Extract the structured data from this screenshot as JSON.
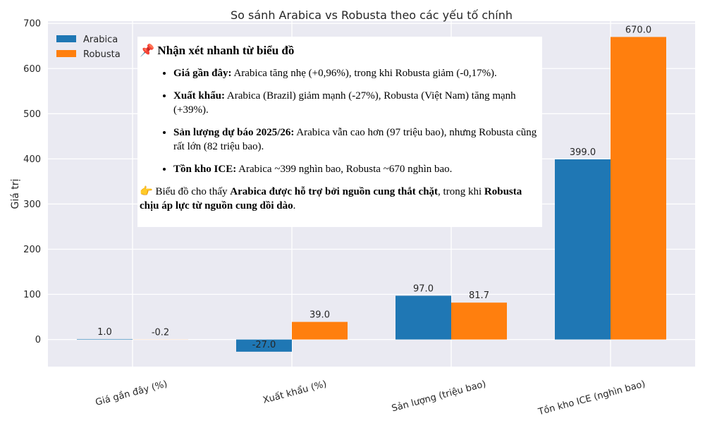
{
  "chart_data": {
    "type": "bar",
    "title": "So sánh Arabica vs Robusta theo các yếu tố chính",
    "xlabel": "",
    "ylabel": "Giá trị",
    "categories": [
      "Giá gần đây (%)",
      "Xuất khẩu (%)",
      "Sản lượng (triệu bao)",
      "Tồn kho ICE (nghìn bao)"
    ],
    "series": [
      {
        "name": "Arabica",
        "values": [
          1.0,
          -27.0,
          97.0,
          399.0
        ],
        "labels": [
          "1.0",
          "-27.0",
          "97.0",
          "399.0"
        ],
        "color": "#1f77b4"
      },
      {
        "name": "Robusta",
        "values": [
          -0.2,
          39.0,
          81.7,
          670.0
        ],
        "labels": [
          "-0.2",
          "39.0",
          "81.7",
          "670.0"
        ],
        "color": "#ff7f0e"
      }
    ],
    "ylim": [
      -60,
      705
    ],
    "yticks": [
      0,
      100,
      200,
      300,
      400,
      500,
      600,
      700
    ],
    "grid": true,
    "legend": "top-left",
    "background": "#eaeaf2"
  },
  "note": {
    "icon": "📌",
    "title": "Nhận xét nhanh từ biểu đồ",
    "items": [
      {
        "key": "Giá gần đây:",
        "text": " Arabica tăng nhẹ (+0,96%), trong khi Robusta giảm (-0,17%)."
      },
      {
        "key": "Xuất khẩu:",
        "text": " Arabica (Brazil) giảm mạnh (-27%), Robusta (Việt Nam) tăng mạnh (+39%)."
      },
      {
        "key": "Sản lượng dự báo 2025/26:",
        "text": " Arabica vẫn cao hơn (97 triệu bao), nhưng Robusta cũng rất lớn (82 triệu bao)."
      },
      {
        "key": "Tồn kho ICE:",
        "text": " Arabica ~399 nghìn bao, Robusta ~670 nghìn bao."
      }
    ],
    "summary": {
      "icon": "👉",
      "part1": " Biểu đồ cho thấy ",
      "bold1": "Arabica được hỗ trợ bởi nguồn cung thắt chặt",
      "part2": ", trong khi ",
      "bold2": "Robusta chịu áp lực từ nguồn cung dồi dào",
      "part3": "."
    }
  }
}
